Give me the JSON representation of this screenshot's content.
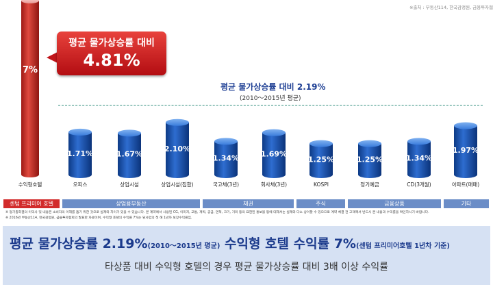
{
  "source": "※출처 : 부동산114, 한국감정원, 금융투자협회",
  "callout": {
    "label": "평균 물가상승률 대비",
    "value": "4.81%"
  },
  "average": {
    "label": "평균 물가상승률 대비 2.19%",
    "period": "(2010～2015년 평균)",
    "value": 2.19
  },
  "chart_data": {
    "type": "bar",
    "categories": [
      "수익형호텔",
      "오피스",
      "상업시설",
      "상업시설(집합)",
      "국고채(3년)",
      "회사채(3년)",
      "KOSPI",
      "정기예금",
      "CD(3개월)",
      "아파트(매매)"
    ],
    "values": [
      7,
      1.71,
      1.67,
      2.1,
      1.34,
      1.69,
      1.25,
      1.25,
      1.34,
      1.97
    ],
    "value_labels": [
      "7%",
      "1.71%",
      "1.67%",
      "2.10%",
      "1.34%",
      "1.69%",
      "1.25%",
      "1.25%",
      "1.34%",
      "1.97%"
    ],
    "reference_line": 2.19,
    "colors": {
      "hotel": "#c8281f",
      "others": "#1a53a9"
    },
    "groups": [
      {
        "label": "센텀 프리미어 호텔",
        "color": "#d22b2b"
      },
      {
        "label": "상업용부동산",
        "color": "#6b8dc7"
      },
      {
        "label": "채권",
        "color": "#6b8dc7"
      },
      {
        "label": "주식",
        "color": "#6b8dc7"
      },
      {
        "label": "금융상품",
        "color": "#6b8dc7"
      },
      {
        "label": "기타",
        "color": "#6b8dc7"
      }
    ]
  },
  "notes": [
    "※ 정기총회결의 이익사 및 내용은 소비자의 이해를 돕기 위한 것으로 실제와 차이가 있을 수 있습니다. 본 계약에서 사용된 CG, 이미지, 교통, 계획, 공급, 면적, 크기, 거리 등의 표현된 홍보물 등에 대해서는 실제와 다소 상이할 수 있으므로 계약 체결 전 고객께서 반드시 본 내용과 수익률을 확인하시기 바랍니다.",
    "※ 2016년 부동산114, 한국감정원, 금융투자협회의 발표한 자료이며, 수익형 호텔의 수익률 7%는 당사업의 첫 해 1년차 보장수익률임."
  ],
  "summary": {
    "line1_a": "평균 물가상승률 2.19%",
    "line1_b": "(2010～2015년 평균)",
    "line1_c": " 수익형 호텔 수익률 7%",
    "line1_d": "(센텀 프리미어호텔 1년차 기준)",
    "line2": "타상품 대비 수익형 호텔의 경우 평균 물가상승률 대비 3배 이상 수익률"
  }
}
